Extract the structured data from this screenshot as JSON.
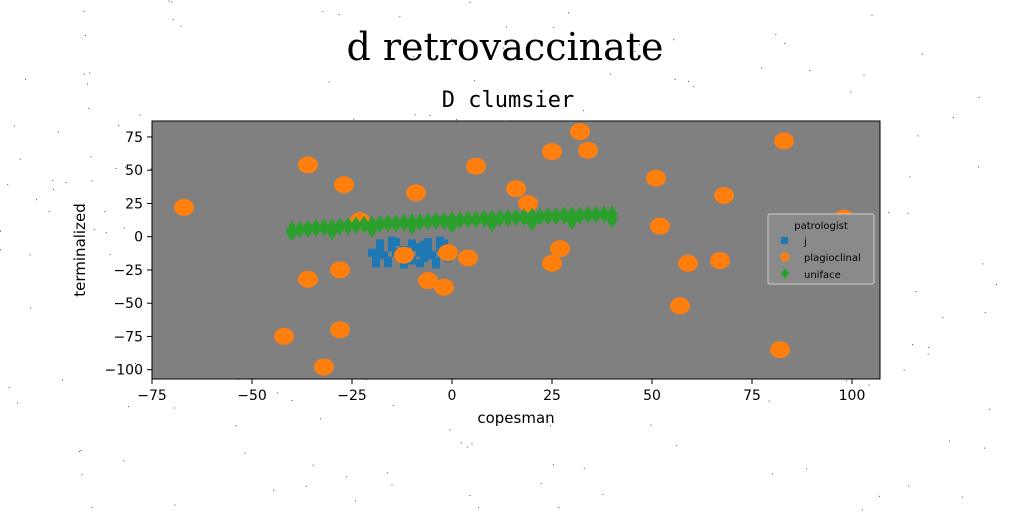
{
  "figure": {
    "suptitle": "d retrovaccinate",
    "colors": {
      "background": "#ffffff",
      "axes_face": "#808080"
    }
  },
  "chart_data": {
    "type": "scatter",
    "title": "D clumsier",
    "xlabel": "copesman",
    "ylabel": "terminalized",
    "xlim": [
      -75,
      107
    ],
    "ylim": [
      -107,
      87
    ],
    "x_ticks": [
      -75,
      -50,
      -25,
      0,
      25,
      50,
      75,
      100
    ],
    "y_ticks": [
      75,
      50,
      25,
      0,
      -25,
      -50,
      -75,
      -100
    ],
    "x_tick_labels": [
      "−75",
      "−50",
      "−25",
      "0",
      "25",
      "50",
      "75",
      "100"
    ],
    "y_tick_labels": [
      "75",
      "50",
      "25",
      "0",
      "−25",
      "−50",
      "−75",
      "−100"
    ],
    "grid": false,
    "legend": {
      "title": "patrologist",
      "position": "right"
    },
    "series": [
      {
        "name": "j",
        "marker": "square",
        "color": "#1f77b4",
        "points": [
          [
            -20,
            -12
          ],
          [
            -19,
            -16
          ],
          [
            -18,
            -10
          ],
          [
            -17,
            -14
          ],
          [
            -16,
            -18
          ],
          [
            -15,
            -8
          ],
          [
            -14,
            -12
          ],
          [
            -13,
            -16
          ],
          [
            -12,
            -10
          ],
          [
            -11,
            -14
          ],
          [
            -10,
            -18
          ],
          [
            -9,
            -8
          ],
          [
            -8,
            -12
          ],
          [
            -7,
            -16
          ],
          [
            -6,
            -10
          ],
          [
            -5,
            -14
          ],
          [
            -4,
            -18
          ],
          [
            -3,
            -8
          ],
          [
            -2,
            -12
          ],
          [
            -1,
            -16
          ],
          [
            -18,
            -5
          ],
          [
            -14,
            -4
          ],
          [
            -10,
            -5
          ],
          [
            -6,
            -4
          ],
          [
            -2,
            -5
          ],
          [
            -16,
            -20
          ],
          [
            -12,
            -21
          ],
          [
            -8,
            -20
          ],
          [
            -4,
            -21
          ],
          [
            -19,
            -20
          ],
          [
            -7,
            -6
          ],
          [
            -15,
            -3
          ],
          [
            -3,
            -3
          ]
        ]
      },
      {
        "name": "plagioclinal",
        "marker": "circle",
        "color": "#ff7f0e",
        "points": [
          [
            -67,
            22
          ],
          [
            -36,
            54
          ],
          [
            -27,
            39
          ],
          [
            -23,
            12
          ],
          [
            -9,
            33
          ],
          [
            6,
            53
          ],
          [
            16,
            36
          ],
          [
            19,
            25
          ],
          [
            25,
            64
          ],
          [
            32,
            79
          ],
          [
            34,
            65
          ],
          [
            51,
            44
          ],
          [
            68,
            31
          ],
          [
            83,
            72
          ],
          [
            98,
            14
          ],
          [
            52,
            8
          ],
          [
            27,
            -9
          ],
          [
            25,
            -20
          ],
          [
            59,
            -20
          ],
          [
            67,
            -18
          ],
          [
            57,
            -52
          ],
          [
            82,
            -85
          ],
          [
            -12,
            -14
          ],
          [
            -1,
            -12
          ],
          [
            4,
            -16
          ],
          [
            -6,
            -33
          ],
          [
            -2,
            -38
          ],
          [
            -28,
            -25
          ],
          [
            -36,
            -32
          ],
          [
            -42,
            -75
          ],
          [
            -28,
            -70
          ],
          [
            -32,
            -98
          ]
        ]
      },
      {
        "name": "uniface",
        "marker": "diamond",
        "color": "#2ca02c",
        "points": [
          [
            -40,
            5
          ],
          [
            -38,
            5.5
          ],
          [
            -36,
            6
          ],
          [
            -34,
            6.5
          ],
          [
            -32,
            7
          ],
          [
            -30,
            7
          ],
          [
            -28,
            7.5
          ],
          [
            -26,
            8
          ],
          [
            -24,
            8.5
          ],
          [
            -22,
            9
          ],
          [
            -20,
            9
          ],
          [
            -18,
            9.5
          ],
          [
            -16,
            10
          ],
          [
            -14,
            10
          ],
          [
            -12,
            10.5
          ],
          [
            -10,
            11
          ],
          [
            -8,
            11
          ],
          [
            -6,
            11.5
          ],
          [
            -4,
            12
          ],
          [
            -2,
            12
          ],
          [
            0,
            12.5
          ],
          [
            2,
            12.5
          ],
          [
            4,
            13
          ],
          [
            6,
            13
          ],
          [
            8,
            13.5
          ],
          [
            10,
            13.5
          ],
          [
            12,
            14
          ],
          [
            14,
            14
          ],
          [
            16,
            14.5
          ],
          [
            18,
            14.5
          ],
          [
            20,
            15
          ],
          [
            22,
            15
          ],
          [
            24,
            15.5
          ],
          [
            26,
            15.5
          ],
          [
            28,
            16
          ],
          [
            30,
            16
          ],
          [
            32,
            16
          ],
          [
            34,
            16.5
          ],
          [
            36,
            16.5
          ],
          [
            38,
            17
          ],
          [
            40,
            17
          ],
          [
            -40,
            3
          ],
          [
            -30,
            4
          ],
          [
            -20,
            6
          ],
          [
            -10,
            8
          ],
          [
            0,
            9
          ],
          [
            10,
            10
          ],
          [
            20,
            11
          ],
          [
            30,
            12
          ],
          [
            40,
            13
          ]
        ]
      }
    ]
  }
}
